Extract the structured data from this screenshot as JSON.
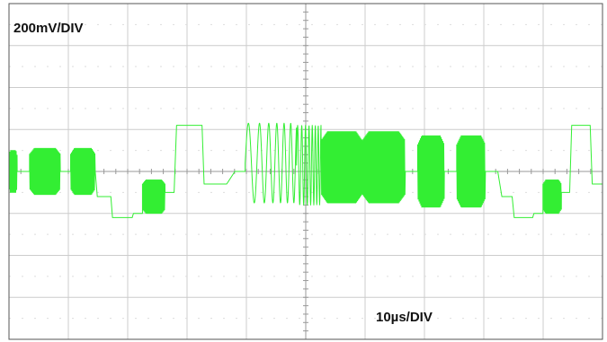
{
  "chart_data": {
    "type": "line",
    "title": "",
    "xlabel": "",
    "ylabel": "",
    "vertical_scale_label": "200mV/DIV",
    "horizontal_scale_label": "10µs/DIV",
    "grid": true,
    "divisions": {
      "x": 10,
      "y": 8
    },
    "colors": {
      "trace": "#33ee33",
      "grid": "#cccccc",
      "axis": "#999999",
      "frame": "#555555"
    },
    "series": [
      {
        "segments": [
          {
            "type": "burst",
            "t0": 0.0,
            "t1": 0.2,
            "center": 0.0,
            "amp": 0.5
          },
          {
            "type": "line",
            "t0": 0.2,
            "t1": 0.5,
            "v0": 0.0,
            "v1": 0.0
          },
          {
            "type": "burst",
            "t0": 0.5,
            "t1": 1.25,
            "center": 0.0,
            "amp": 0.55
          },
          {
            "type": "line",
            "t0": 1.25,
            "t1": 1.5,
            "v0": 0.0,
            "v1": 0.0
          },
          {
            "type": "burst",
            "t0": 1.5,
            "t1": 2.1,
            "center": 0.0,
            "amp": 0.55
          },
          {
            "type": "line",
            "t0": 2.1,
            "t1": 2.15,
            "v0": 0.0,
            "v1": -0.6
          },
          {
            "type": "line",
            "t0": 2.15,
            "t1": 2.48,
            "v0": -0.6,
            "v1": -0.6
          },
          {
            "type": "line",
            "t0": 2.48,
            "t1": 2.52,
            "v0": -0.6,
            "v1": -1.1
          },
          {
            "type": "line",
            "t0": 2.52,
            "t1": 3.0,
            "v0": -1.1,
            "v1": -1.1
          },
          {
            "type": "line",
            "t0": 3.0,
            "t1": 3.03,
            "v0": -1.1,
            "v1": -1.0
          },
          {
            "type": "line",
            "t0": 3.03,
            "t1": 3.25,
            "v0": -1.0,
            "v1": -1.0
          },
          {
            "type": "burst",
            "t0": 3.25,
            "t1": 3.8,
            "center": -0.6,
            "amp": 0.4
          },
          {
            "type": "line",
            "t0": 3.8,
            "t1": 4.02,
            "v0": -0.5,
            "v1": -0.5
          },
          {
            "type": "line",
            "t0": 4.02,
            "t1": 4.08,
            "v0": -0.5,
            "v1": 1.1
          },
          {
            "type": "line",
            "t0": 4.08,
            "t1": 4.7,
            "v0": 1.1,
            "v1": 1.1
          },
          {
            "type": "line",
            "t0": 4.7,
            "t1": 4.75,
            "v0": 1.1,
            "v1": -0.3
          },
          {
            "type": "line",
            "t0": 4.75,
            "t1": 5.3,
            "v0": -0.3,
            "v1": -0.3
          },
          {
            "type": "line",
            "t0": 5.3,
            "t1": 5.5,
            "v0": -0.3,
            "v1": 0.0
          },
          {
            "type": "line",
            "t0": 5.5,
            "t1": 5.75,
            "v0": 0.0,
            "v1": 0.0
          },
          {
            "type": "chirp",
            "t0": 5.75,
            "t1": 7.0,
            "center": 0.2,
            "amp": 0.95,
            "f0": 4.0,
            "f1": 9.0
          },
          {
            "type": "chirp",
            "t0": 7.0,
            "t1": 7.6,
            "center": 0.15,
            "amp": 0.95,
            "f0": 12.0,
            "f1": 20.0
          },
          {
            "type": "burst",
            "t0": 7.6,
            "t1": 8.6,
            "center": 0.1,
            "amp": 0.85
          },
          {
            "type": "burst",
            "t0": 8.6,
            "t1": 9.65,
            "center": 0.1,
            "amp": 0.85
          },
          {
            "type": "line",
            "t0": 9.65,
            "t1": 9.95,
            "v0": 0.0,
            "v1": 0.0
          },
          {
            "type": "burst",
            "t0": 9.95,
            "t1": 10.6,
            "center": 0.0,
            "amp": 0.85
          },
          {
            "type": "line",
            "t0": 10.6,
            "t1": 10.9,
            "v0": 0.0,
            "v1": 0.0
          },
          {
            "type": "burst",
            "t0": 10.9,
            "t1": 11.6,
            "center": 0.0,
            "amp": 0.85
          },
          {
            "type": "line",
            "t0": 11.6,
            "t1": 11.9,
            "v0": 0.0,
            "v1": 0.0
          },
          {
            "type": "line",
            "t0": 11.9,
            "t1": 12.0,
            "v0": 0.0,
            "v1": -0.6
          },
          {
            "type": "line",
            "t0": 12.0,
            "t1": 12.25,
            "v0": -0.6,
            "v1": -0.6
          },
          {
            "type": "line",
            "t0": 12.25,
            "t1": 12.3,
            "v0": -0.6,
            "v1": -1.1
          },
          {
            "type": "line",
            "t0": 12.3,
            "t1": 12.75,
            "v0": -1.1,
            "v1": -1.1
          },
          {
            "type": "line",
            "t0": 12.75,
            "t1": 12.78,
            "v0": -1.1,
            "v1": -1.0
          },
          {
            "type": "line",
            "t0": 12.78,
            "t1": 13.0,
            "v0": -1.0,
            "v1": -1.0
          },
          {
            "type": "burst",
            "t0": 13.0,
            "t1": 13.45,
            "center": -0.6,
            "amp": 0.4
          },
          {
            "type": "line",
            "t0": 13.45,
            "t1": 13.65,
            "v0": -0.5,
            "v1": -0.5
          },
          {
            "type": "line",
            "t0": 13.65,
            "t1": 13.7,
            "v0": -0.5,
            "v1": 1.1
          },
          {
            "type": "line",
            "t0": 13.7,
            "t1": 14.15,
            "v0": 1.1,
            "v1": 1.1
          },
          {
            "type": "line",
            "t0": 14.15,
            "t1": 14.2,
            "v0": 1.1,
            "v1": -0.3
          },
          {
            "type": "line",
            "t0": 14.2,
            "t1": 14.45,
            "v0": -0.3,
            "v1": -0.3
          }
        ]
      }
    ],
    "x_range": [
      0,
      14.45
    ],
    "y_range": [
      -4,
      4
    ]
  }
}
